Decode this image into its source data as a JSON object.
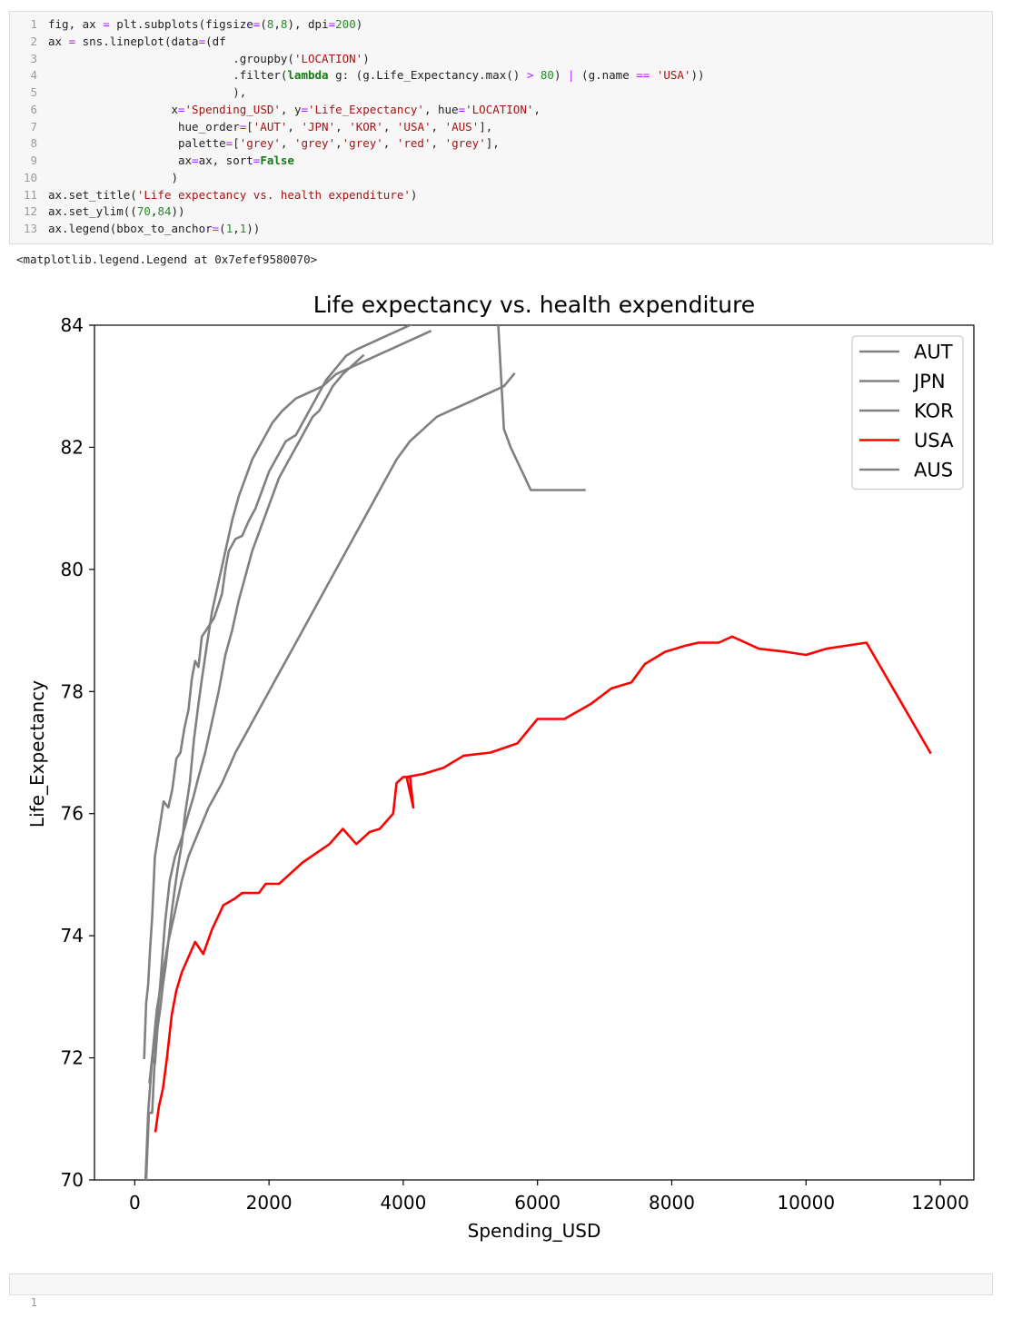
{
  "notebook": {
    "code_lines": [
      [
        {
          "t": "fig, ax "
        },
        {
          "t": "=",
          "c": "op"
        },
        {
          "t": " plt.subplots(figsize"
        },
        {
          "t": "=",
          "c": "op"
        },
        {
          "t": "("
        },
        {
          "t": "8",
          "c": "num"
        },
        {
          "t": ","
        },
        {
          "t": "8",
          "c": "num"
        },
        {
          "t": "), dpi"
        },
        {
          "t": "=",
          "c": "op"
        },
        {
          "t": "200",
          "c": "num"
        },
        {
          "t": ")"
        }
      ],
      [
        {
          "t": "ax "
        },
        {
          "t": "=",
          "c": "op"
        },
        {
          "t": " sns.lineplot(data"
        },
        {
          "t": "=",
          "c": "op"
        },
        {
          "t": "(df"
        }
      ],
      [
        {
          "t": "                           .groupby("
        },
        {
          "t": "'LOCATION'",
          "c": "str"
        },
        {
          "t": ")"
        }
      ],
      [
        {
          "t": "                           .filter("
        },
        {
          "t": "lambda",
          "c": "kw"
        },
        {
          "t": " g: (g.Life_Expectancy.max() "
        },
        {
          "t": ">",
          "c": "op"
        },
        {
          "t": " "
        },
        {
          "t": "80",
          "c": "num"
        },
        {
          "t": ") "
        },
        {
          "t": "|",
          "c": "op"
        },
        {
          "t": " (g.name "
        },
        {
          "t": "==",
          "c": "op"
        },
        {
          "t": " "
        },
        {
          "t": "'USA'",
          "c": "str"
        },
        {
          "t": "))"
        }
      ],
      [
        {
          "t": "                           ),"
        }
      ],
      [
        {
          "t": "                  x"
        },
        {
          "t": "=",
          "c": "op"
        },
        {
          "t": "'Spending_USD'",
          "c": "str"
        },
        {
          "t": ", y"
        },
        {
          "t": "=",
          "c": "op"
        },
        {
          "t": "'Life_Expectancy'",
          "c": "str"
        },
        {
          "t": ", hue"
        },
        {
          "t": "=",
          "c": "op"
        },
        {
          "t": "'LOCATION'",
          "c": "str"
        },
        {
          "t": ","
        }
      ],
      [
        {
          "t": "                   hue_order"
        },
        {
          "t": "=",
          "c": "op"
        },
        {
          "t": "["
        },
        {
          "t": "'AUT'",
          "c": "str"
        },
        {
          "t": ", "
        },
        {
          "t": "'JPN'",
          "c": "str"
        },
        {
          "t": ", "
        },
        {
          "t": "'KOR'",
          "c": "str"
        },
        {
          "t": ", "
        },
        {
          "t": "'USA'",
          "c": "str"
        },
        {
          "t": ", "
        },
        {
          "t": "'AUS'",
          "c": "str"
        },
        {
          "t": "],"
        }
      ],
      [
        {
          "t": "                   palette"
        },
        {
          "t": "=",
          "c": "op"
        },
        {
          "t": "["
        },
        {
          "t": "'grey'",
          "c": "str"
        },
        {
          "t": ", "
        },
        {
          "t": "'grey'",
          "c": "str"
        },
        {
          "t": ","
        },
        {
          "t": "'grey'",
          "c": "str"
        },
        {
          "t": ", "
        },
        {
          "t": "'red'",
          "c": "str"
        },
        {
          "t": ", "
        },
        {
          "t": "'grey'",
          "c": "str"
        },
        {
          "t": "],"
        }
      ],
      [
        {
          "t": "                   ax"
        },
        {
          "t": "=",
          "c": "op"
        },
        {
          "t": "ax, sort"
        },
        {
          "t": "=",
          "c": "op"
        },
        {
          "t": "False",
          "c": "kw"
        }
      ],
      [
        {
          "t": "                  )"
        }
      ],
      [
        {
          "t": "ax.set_title("
        },
        {
          "t": "'Life expectancy vs. health expenditure'",
          "c": "str"
        },
        {
          "t": ")"
        }
      ],
      [
        {
          "t": "ax.set_ylim(("
        },
        {
          "t": "70",
          "c": "num"
        },
        {
          "t": ","
        },
        {
          "t": "84",
          "c": "num"
        },
        {
          "t": "))"
        }
      ],
      [
        {
          "t": "ax.legend(bbox_to_anchor"
        },
        {
          "t": "=",
          "c": "op"
        },
        {
          "t": "("
        },
        {
          "t": "1",
          "c": "num"
        },
        {
          "t": ","
        },
        {
          "t": "1",
          "c": "num"
        },
        {
          "t": "))"
        }
      ]
    ],
    "line_numbers": [
      "1",
      "2",
      "3",
      "4",
      "5",
      "6",
      "7",
      "8",
      "9",
      "10",
      "11",
      "12",
      "13"
    ],
    "output_text": "<matplotlib.legend.Legend at 0x7efef9580070>",
    "empty_cell_line_number": "1"
  },
  "chart_data": {
    "type": "line",
    "title": "Life expectancy vs. health expenditure",
    "xlabel": "Spending_USD",
    "ylabel": "Life_Expectancy",
    "xlim": [
      -600,
      12500
    ],
    "ylim": [
      70,
      84
    ],
    "xticks": [
      0,
      2000,
      4000,
      6000,
      8000,
      10000,
      12000
    ],
    "yticks": [
      70,
      72,
      74,
      76,
      78,
      80,
      82,
      84
    ],
    "grid": false,
    "legend_position": "top-right",
    "series": [
      {
        "name": "AUT",
        "color": "#808080",
        "points": [
          [
            220,
            71.6
          ],
          [
            260,
            72.0
          ],
          [
            300,
            71.9
          ],
          [
            340,
            72.5
          ],
          [
            380,
            72.8
          ],
          [
            420,
            73.2
          ],
          [
            460,
            73.5
          ],
          [
            500,
            73.9
          ],
          [
            540,
            74.3
          ],
          [
            600,
            74.8
          ],
          [
            640,
            75.1
          ],
          [
            700,
            75.5
          ],
          [
            750,
            76.0
          ],
          [
            820,
            76.5
          ],
          [
            880,
            77.2
          ],
          [
            950,
            77.8
          ],
          [
            1000,
            78.2
          ],
          [
            1080,
            78.8
          ],
          [
            1150,
            79.3
          ],
          [
            1250,
            79.8
          ],
          [
            1350,
            80.3
          ],
          [
            1450,
            80.8
          ],
          [
            1550,
            81.2
          ],
          [
            1650,
            81.5
          ],
          [
            1750,
            81.8
          ],
          [
            1850,
            82.0
          ],
          [
            1950,
            82.2
          ],
          [
            2050,
            82.4
          ],
          [
            2200,
            82.6
          ],
          [
            2400,
            82.8
          ],
          [
            2600,
            82.9
          ],
          [
            2800,
            83.0
          ],
          [
            3000,
            83.2
          ],
          [
            3200,
            83.3
          ],
          [
            3400,
            83.4
          ],
          [
            3600,
            83.5
          ],
          [
            3800,
            83.6
          ],
          [
            4000,
            83.7
          ],
          [
            4200,
            83.8
          ],
          [
            4400,
            83.9
          ]
        ]
      },
      {
        "name": "JPN",
        "color": "#808080",
        "points": [
          [
            170,
            70.0
          ],
          [
            210,
            71.1
          ],
          [
            260,
            71.1
          ],
          [
            320,
            72.5
          ],
          [
            380,
            73.2
          ],
          [
            450,
            74.2
          ],
          [
            520,
            74.9
          ],
          [
            600,
            75.3
          ],
          [
            700,
            75.6
          ],
          [
            800,
            76.0
          ],
          [
            880,
            76.3
          ],
          [
            950,
            76.6
          ],
          [
            1050,
            77.0
          ],
          [
            1150,
            77.5
          ],
          [
            1250,
            78.0
          ],
          [
            1350,
            78.6
          ],
          [
            1450,
            79.0
          ],
          [
            1550,
            79.5
          ],
          [
            1650,
            79.9
          ],
          [
            1750,
            80.3
          ],
          [
            1850,
            80.6
          ],
          [
            1950,
            80.9
          ],
          [
            2050,
            81.2
          ],
          [
            2150,
            81.5
          ],
          [
            2250,
            81.7
          ],
          [
            2350,
            81.9
          ],
          [
            2450,
            82.1
          ],
          [
            2550,
            82.3
          ],
          [
            2650,
            82.5
          ],
          [
            2750,
            82.6
          ],
          [
            2850,
            82.8
          ],
          [
            2950,
            83.0
          ],
          [
            3100,
            83.2
          ],
          [
            3250,
            83.35
          ],
          [
            3400,
            83.5
          ]
        ]
      },
      {
        "name": "KOR",
        "color": "#808080",
        "points": [
          [
            160,
            70.0
          ],
          [
            200,
            71.1
          ],
          [
            260,
            72.0
          ],
          [
            330,
            72.8
          ],
          [
            420,
            73.4
          ],
          [
            500,
            73.9
          ],
          [
            600,
            74.4
          ],
          [
            700,
            74.9
          ],
          [
            800,
            75.3
          ],
          [
            950,
            75.7
          ],
          [
            1100,
            76.1
          ],
          [
            1300,
            76.5
          ],
          [
            1500,
            77.0
          ],
          [
            1700,
            77.4
          ],
          [
            1900,
            77.8
          ],
          [
            2100,
            78.2
          ],
          [
            2300,
            78.6
          ],
          [
            2500,
            79.0
          ],
          [
            2700,
            79.4
          ],
          [
            2900,
            79.8
          ],
          [
            3100,
            80.2
          ],
          [
            3300,
            80.6
          ],
          [
            3500,
            81.0
          ],
          [
            3700,
            81.4
          ],
          [
            3900,
            81.8
          ],
          [
            4100,
            82.1
          ],
          [
            4300,
            82.3
          ],
          [
            4500,
            82.5
          ],
          [
            4700,
            82.6
          ],
          [
            4900,
            82.7
          ],
          [
            5100,
            82.8
          ],
          [
            5300,
            82.9
          ],
          [
            5500,
            83.0
          ],
          [
            5650,
            83.2
          ]
        ]
      },
      {
        "name": "USA",
        "color": "#ff0000",
        "points": [
          [
            310,
            70.8
          ],
          [
            360,
            71.2
          ],
          [
            420,
            71.5
          ],
          [
            480,
            72.0
          ],
          [
            550,
            72.7
          ],
          [
            620,
            73.1
          ],
          [
            700,
            73.4
          ],
          [
            780,
            73.6
          ],
          [
            900,
            73.9
          ],
          [
            1020,
            73.7
          ],
          [
            1150,
            74.1
          ],
          [
            1320,
            74.5
          ],
          [
            1480,
            74.6
          ],
          [
            1600,
            74.7
          ],
          [
            1720,
            74.7
          ],
          [
            1850,
            74.7
          ],
          [
            1950,
            74.85
          ],
          [
            2150,
            74.85
          ],
          [
            2300,
            75.0
          ],
          [
            2500,
            75.2
          ],
          [
            2700,
            75.35
          ],
          [
            2900,
            75.5
          ],
          [
            3100,
            75.75
          ],
          [
            3300,
            75.5
          ],
          [
            3500,
            75.7
          ],
          [
            3650,
            75.75
          ],
          [
            3850,
            76.0
          ],
          [
            3900,
            76.5
          ],
          [
            4000,
            76.6
          ],
          [
            4100,
            76.6
          ],
          [
            4150,
            76.1
          ],
          [
            4050,
            76.6
          ],
          [
            4300,
            76.65
          ],
          [
            4600,
            76.75
          ],
          [
            4900,
            76.95
          ],
          [
            5300,
            77.0
          ],
          [
            5700,
            77.15
          ],
          [
            6000,
            77.55
          ],
          [
            6400,
            77.55
          ],
          [
            6800,
            77.8
          ],
          [
            7100,
            78.05
          ],
          [
            7400,
            78.15
          ],
          [
            7600,
            78.45
          ],
          [
            7900,
            78.65
          ],
          [
            8200,
            78.75
          ],
          [
            8400,
            78.8
          ],
          [
            8700,
            78.8
          ],
          [
            8900,
            78.9
          ],
          [
            9300,
            78.7
          ],
          [
            9700,
            78.65
          ],
          [
            10000,
            78.6
          ],
          [
            10300,
            78.7
          ],
          [
            10900,
            78.8
          ],
          [
            11850,
            77.0
          ]
        ]
      },
      {
        "name": "AUS",
        "color": "#808080",
        "points": [
          [
            140,
            72.0
          ],
          [
            170,
            72.9
          ],
          [
            200,
            73.2
          ],
          [
            230,
            73.8
          ],
          [
            260,
            74.3
          ],
          [
            300,
            75.3
          ],
          [
            360,
            75.7
          ],
          [
            430,
            76.2
          ],
          [
            500,
            76.1
          ],
          [
            560,
            76.4
          ],
          [
            620,
            76.9
          ],
          [
            680,
            77.0
          ],
          [
            740,
            77.4
          ],
          [
            800,
            77.7
          ],
          [
            850,
            78.2
          ],
          [
            900,
            78.5
          ],
          [
            950,
            78.4
          ],
          [
            1000,
            78.9
          ],
          [
            1060,
            79.0
          ],
          [
            1120,
            79.1
          ],
          [
            1180,
            79.2
          ],
          [
            1240,
            79.4
          ],
          [
            1300,
            79.6
          ],
          [
            1350,
            80.0
          ],
          [
            1400,
            80.3
          ],
          [
            1500,
            80.5
          ],
          [
            1600,
            80.55
          ],
          [
            1700,
            80.8
          ],
          [
            1800,
            81.0
          ],
          [
            1900,
            81.3
          ],
          [
            2000,
            81.6
          ],
          [
            2100,
            81.8
          ],
          [
            2250,
            82.1
          ],
          [
            2400,
            82.2
          ],
          [
            2550,
            82.5
          ],
          [
            2700,
            82.8
          ],
          [
            2850,
            83.1
          ],
          [
            3000,
            83.3
          ],
          [
            3150,
            83.5
          ],
          [
            3300,
            83.6
          ],
          [
            3500,
            83.7
          ],
          [
            3700,
            83.8
          ],
          [
            3900,
            83.9
          ],
          [
            4100,
            84.0
          ],
          [
            4400,
            84.2
          ],
          [
            4600,
            84.4
          ],
          [
            4800,
            84.6
          ],
          [
            5000,
            84.8
          ],
          [
            5200,
            84.9
          ],
          [
            5400,
            84.3
          ],
          [
            5500,
            82.3
          ],
          [
            5600,
            82.0
          ],
          [
            5900,
            81.3
          ],
          [
            6700,
            81.3
          ]
        ]
      }
    ]
  }
}
